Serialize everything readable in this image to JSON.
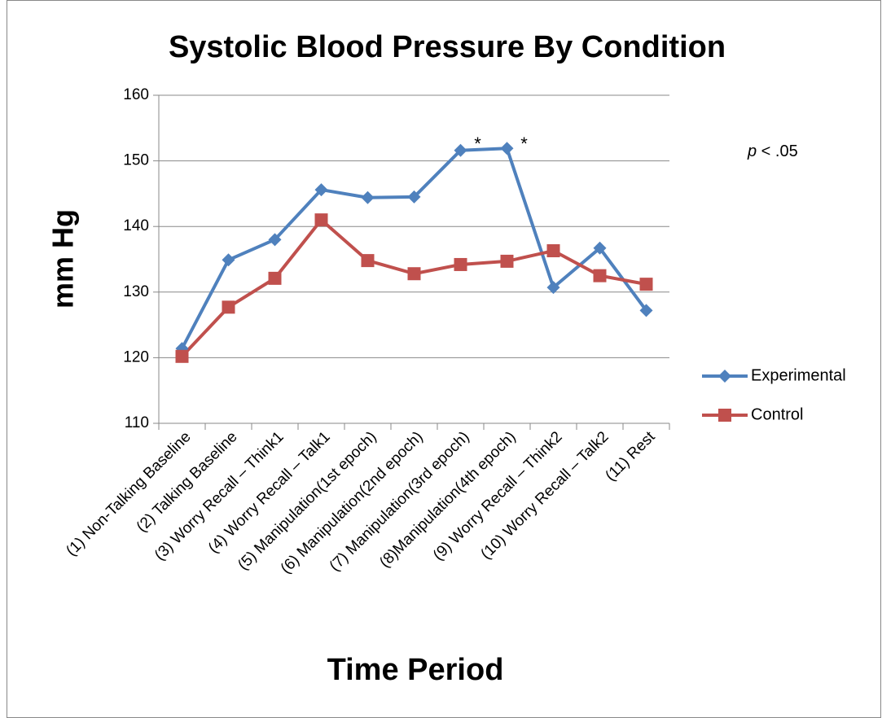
{
  "chart_data": {
    "type": "line",
    "title": "Systolic Blood Pressure  By Condition",
    "x_label": "Time Period",
    "y_label": "mm Hg",
    "categories": [
      "(1) Non-Talking Baseline",
      "(2) Talking Baseline",
      "(3) Worry Recall – Think1",
      "(4) Worry Recall – Talk1",
      "(5) Manipulation(1st epoch)",
      "(6) Manipulation(2nd epoch)",
      "(7) Manipulation(3rd epoch)",
      "(8)Manipulation(4th epoch)",
      "(9) Worry Recall – Think2",
      "(10) Worry Recall – Talk2",
      "(11) Rest"
    ],
    "series": [
      {
        "name": "Experimental",
        "color": "#4f81bd",
        "marker": "diamond",
        "values": [
          121.4,
          134.9,
          138.0,
          145.6,
          144.4,
          144.5,
          151.6,
          151.9,
          130.7,
          136.7,
          127.2
        ]
      },
      {
        "name": "Control",
        "color": "#c0504d",
        "marker": "square",
        "values": [
          120.2,
          127.7,
          132.1,
          141.0,
          134.8,
          132.8,
          134.2,
          134.7,
          136.3,
          132.5,
          131.2
        ]
      }
    ],
    "annotations": [
      {
        "text": "*",
        "category": 6
      },
      {
        "text": "*",
        "category": 7
      }
    ],
    "significance": {
      "symbol": "p",
      "text": " < .05"
    },
    "ylim": [
      110,
      160
    ],
    "yticks": [
      110,
      120,
      130,
      140,
      150,
      160
    ],
    "grid": true,
    "legend": "right"
  }
}
